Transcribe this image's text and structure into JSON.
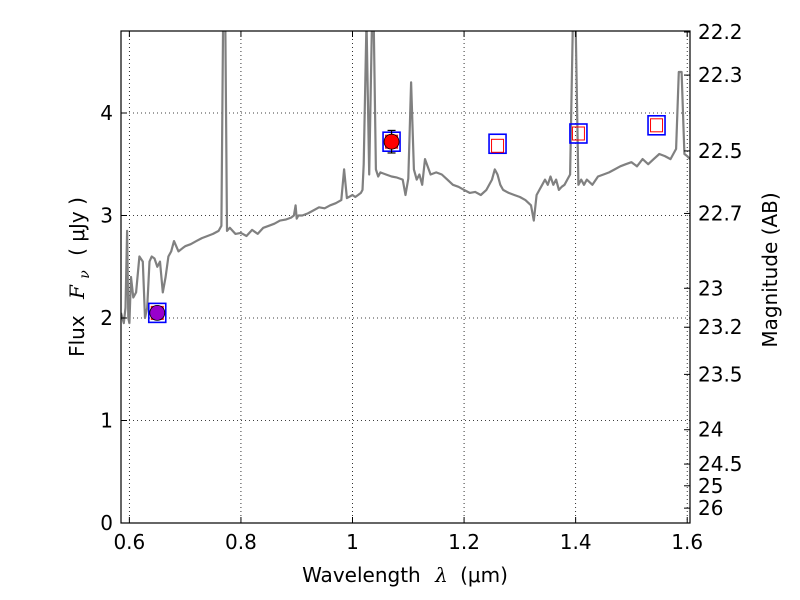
{
  "chart_data": {
    "type": "line",
    "xlabel_prefix": "Wavelength",
    "xlabel_symbol": "λ",
    "xlabel_unit": "(μm)",
    "ylabel_prefix": "Flux",
    "ylabel_symbol": "F",
    "ylabel_subscript": "ν",
    "ylabel_unit": "( μJy )",
    "y2label": "Magnitude (AB)",
    "xlim": [
      0.585,
      1.605
    ],
    "ylim": [
      0,
      4.8
    ],
    "grid": true,
    "x_ticks": [
      {
        "value": 0.6,
        "label": "0.6"
      },
      {
        "value": 0.8,
        "label": "0.8"
      },
      {
        "value": 1.0,
        "label": "1"
      },
      {
        "value": 1.2,
        "label": "1.2"
      },
      {
        "value": 1.4,
        "label": "1.4"
      },
      {
        "value": 1.6,
        "label": "1.6"
      }
    ],
    "y_ticks": [
      {
        "value": 0,
        "label": "0"
      },
      {
        "value": 1,
        "label": "1"
      },
      {
        "value": 2,
        "label": "2"
      },
      {
        "value": 3,
        "label": "3"
      },
      {
        "value": 4,
        "label": "4"
      }
    ],
    "mag_ticks": [
      {
        "label": "22.2",
        "flux": 4.79
      },
      {
        "label": "22.3",
        "flux": 4.37
      },
      {
        "label": "22.5",
        "flux": 3.63
      },
      {
        "label": "22.7",
        "flux": 3.02
      },
      {
        "label": "23",
        "flux": 2.29
      },
      {
        "label": "23.2",
        "flux": 1.91
      },
      {
        "label": "23.5",
        "flux": 1.45
      },
      {
        "label": "24",
        "flux": 0.91
      },
      {
        "label": "24.5",
        "flux": 0.575
      },
      {
        "label": "25",
        "flux": 0.363
      },
      {
        "label": "26",
        "flux": 0.145
      }
    ],
    "spectrum": {
      "color": "#808080",
      "x": [
        0.585,
        0.59,
        0.593,
        0.596,
        0.598,
        0.6,
        0.603,
        0.607,
        0.612,
        0.618,
        0.624,
        0.628,
        0.632,
        0.636,
        0.64,
        0.645,
        0.65,
        0.655,
        0.66,
        0.665,
        0.67,
        0.675,
        0.68,
        0.688,
        0.695,
        0.7,
        0.71,
        0.72,
        0.73,
        0.74,
        0.75,
        0.76,
        0.765,
        0.768,
        0.772,
        0.775,
        0.78,
        0.79,
        0.8,
        0.81,
        0.82,
        0.83,
        0.84,
        0.85,
        0.86,
        0.87,
        0.88,
        0.89,
        0.895,
        0.898,
        0.9,
        0.903,
        0.91,
        0.92,
        0.93,
        0.94,
        0.95,
        0.96,
        0.97,
        0.98,
        0.985,
        0.99,
        1.0,
        1.005,
        1.01,
        1.015,
        1.018,
        1.02,
        1.025,
        1.03,
        1.035,
        1.038,
        1.042,
        1.046,
        1.05,
        1.06,
        1.07,
        1.08,
        1.09,
        1.095,
        1.1,
        1.105,
        1.11,
        1.115,
        1.12,
        1.125,
        1.13,
        1.14,
        1.15,
        1.16,
        1.17,
        1.18,
        1.19,
        1.2,
        1.21,
        1.22,
        1.23,
        1.24,
        1.25,
        1.255,
        1.26,
        1.265,
        1.27,
        1.28,
        1.29,
        1.3,
        1.31,
        1.32,
        1.325,
        1.33,
        1.335,
        1.34,
        1.345,
        1.35,
        1.355,
        1.36,
        1.365,
        1.37,
        1.375,
        1.38,
        1.385,
        1.39,
        1.395,
        1.4,
        1.405,
        1.41,
        1.415,
        1.42,
        1.43,
        1.44,
        1.45,
        1.46,
        1.47,
        1.48,
        1.49,
        1.5,
        1.51,
        1.52,
        1.53,
        1.54,
        1.55,
        1.56,
        1.57,
        1.575,
        1.58,
        1.585,
        1.59,
        1.595,
        1.6,
        1.605
      ],
      "y": [
        2.05,
        1.95,
        2.1,
        2.85,
        2.0,
        1.95,
        2.4,
        2.2,
        2.25,
        2.6,
        2.55,
        2.0,
        2.1,
        2.55,
        2.6,
        2.58,
        2.5,
        2.55,
        2.25,
        2.4,
        2.6,
        2.65,
        2.75,
        2.65,
        2.68,
        2.7,
        2.72,
        2.75,
        2.78,
        2.8,
        2.82,
        2.85,
        2.9,
        4.9,
        4.9,
        2.85,
        2.88,
        2.82,
        2.83,
        2.8,
        2.86,
        2.82,
        2.88,
        2.9,
        2.92,
        2.95,
        2.96,
        2.98,
        3.0,
        3.1,
        2.97,
        3.0,
        3.0,
        3.02,
        3.05,
        3.08,
        3.07,
        3.1,
        3.12,
        3.15,
        3.45,
        3.17,
        3.2,
        3.18,
        3.2,
        3.22,
        3.25,
        3.5,
        4.9,
        3.4,
        4.9,
        4.9,
        3.45,
        3.38,
        3.42,
        3.4,
        3.38,
        3.37,
        3.35,
        3.2,
        3.36,
        4.3,
        3.45,
        3.35,
        3.4,
        3.3,
        3.55,
        3.4,
        3.42,
        3.4,
        3.35,
        3.3,
        3.28,
        3.25,
        3.22,
        3.23,
        3.2,
        3.25,
        3.35,
        3.45,
        3.4,
        3.3,
        3.25,
        3.22,
        3.2,
        3.18,
        3.15,
        3.1,
        2.95,
        3.2,
        3.25,
        3.3,
        3.35,
        3.3,
        3.38,
        3.3,
        3.35,
        3.25,
        3.28,
        3.3,
        3.35,
        3.4,
        4.9,
        4.9,
        3.3,
        3.35,
        3.3,
        3.35,
        3.3,
        3.38,
        3.4,
        3.42,
        3.45,
        3.48,
        3.5,
        3.52,
        3.48,
        3.55,
        3.5,
        3.55,
        3.6,
        3.58,
        3.55,
        3.6,
        3.65,
        4.4,
        4.4,
        3.6,
        3.58,
        3.55
      ]
    },
    "photometry_squares": {
      "x": [
        0.65,
        1.07,
        1.26,
        1.405,
        1.545
      ],
      "y": [
        2.05,
        3.72,
        3.7,
        3.8,
        3.88
      ]
    },
    "model_squares": {
      "x": [
        0.65,
        1.07,
        1.26,
        1.405,
        1.545
      ],
      "y": [
        2.05,
        3.72,
        3.68,
        3.8,
        3.88
      ]
    },
    "measured_points": [
      {
        "x": 0.65,
        "y": 2.05,
        "err": 0.06,
        "color": "#9900cc"
      },
      {
        "x": 1.07,
        "y": 3.72,
        "err": 0.11,
        "color": "#ff0000"
      }
    ]
  }
}
